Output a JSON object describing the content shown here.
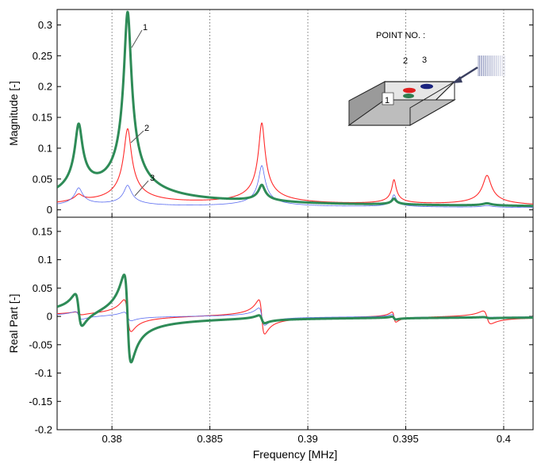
{
  "chart_data": {
    "type": "line",
    "xlabel": "Frequency [MHz]",
    "xlim": [
      0.3772,
      0.4015
    ],
    "xticks": [
      "0.38",
      "0.385",
      "0.39",
      "0.395",
      "0.4"
    ],
    "grid": "vertical dotted",
    "colors": {
      "point1": "#2e8b57",
      "point2": "#ff2a2a",
      "point3": "#5a6cf0"
    },
    "inset": {
      "title": "POINT NO. :",
      "labels": [
        "1",
        "2",
        "3"
      ]
    },
    "panels": [
      {
        "name": "magnitude",
        "ylabel": "Magnitude [-]",
        "ylim": [
          -0.012,
          0.325
        ],
        "yticks": [
          "0",
          "0.05",
          "0.1",
          "0.15",
          "0.2",
          "0.25",
          "0.3"
        ],
        "curve_labels": [
          "1",
          "2",
          "3"
        ],
        "resonances": [
          {
            "f": 0.3783,
            "g": 0.00018,
            "point1": 0.115,
            "point2": 0.012,
            "point3": 0.03
          },
          {
            "f": 0.3808,
            "g": 0.00018,
            "point1": 0.31,
            "point2": 0.125,
            "point3": 0.034
          },
          {
            "f": 0.38765,
            "g": 0.00015,
            "point1": 0.028,
            "point2": 0.134,
            "point3": 0.068
          },
          {
            "f": 0.3944,
            "g": 0.0001,
            "point1": 0.01,
            "point2": 0.04,
            "point3": 0.02
          },
          {
            "f": 0.39915,
            "g": 0.0002,
            "point1": 0.004,
            "point2": 0.05,
            "point3": 0.003
          }
        ]
      },
      {
        "name": "real-part",
        "ylabel": "Real Part [-]",
        "ylim": [
          -0.2,
          0.175
        ],
        "yticks": [
          "-0.2",
          "-0.15",
          "-0.1",
          "-0.05",
          "0",
          "0.05",
          "0.1",
          "0.15"
        ],
        "resonances": [
          {
            "f": 0.3783,
            "g": 0.00018,
            "point1": 0.115,
            "point2": 0.012,
            "point3": 0.03
          },
          {
            "f": 0.3808,
            "g": 0.00018,
            "point1": 0.31,
            "point2": 0.125,
            "point3": 0.034
          },
          {
            "f": 0.38765,
            "g": 0.00015,
            "point1": 0.028,
            "point2": 0.134,
            "point3": 0.068
          },
          {
            "f": 0.3944,
            "g": 0.0001,
            "point1": 0.01,
            "point2": 0.04,
            "point3": 0.02
          },
          {
            "f": 0.39915,
            "g": 0.0002,
            "point1": 0.004,
            "point2": 0.05,
            "point3": 0.003
          }
        ]
      }
    ]
  }
}
